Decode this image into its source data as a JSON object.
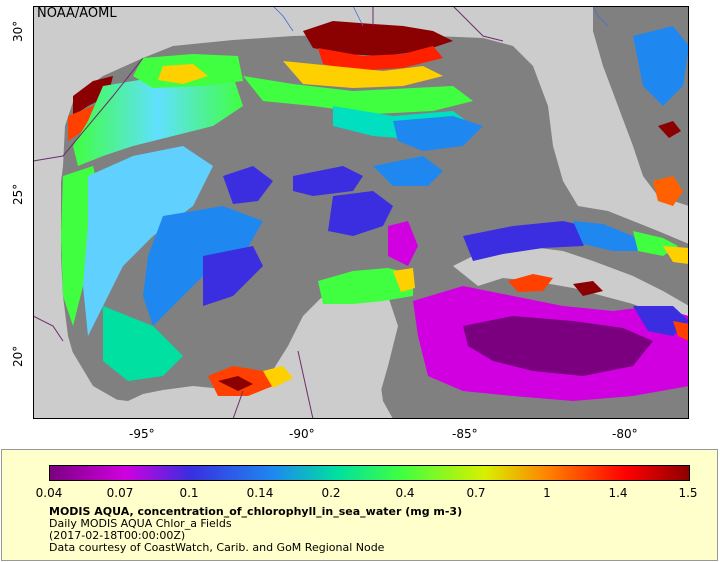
{
  "map": {
    "credit": "NOAA/AOML",
    "x_ticks": [
      "-95°",
      "-90°",
      "-85°",
      "-80°"
    ],
    "y_ticks": [
      "30°",
      "25°",
      "20°"
    ],
    "colors": {
      "land": "#cccccc",
      "ocean_nodata": "#808080",
      "border": "#6b2e6b"
    }
  },
  "legend": {
    "colorbar_labels": [
      "0.04",
      "0.07",
      "0.1",
      "0.14",
      "0.2",
      "0.4",
      "0.7",
      "1",
      "1.4",
      "1.5"
    ],
    "variable_title": "MODIS AQUA, concentration_of_chlorophyll_in_sea_water (mg m-3)",
    "line1": "Daily MODIS AQUA Chlor_a Fields",
    "line2": "(2017-02-18T00:00:00Z)",
    "line3": "Data courtesy of CoastWatch, Carib. and GoM Regional Node",
    "palette": [
      "#7a0080",
      "#d000e0",
      "#3a2ee0",
      "#1e88f0",
      "#00e0a0",
      "#40ff40",
      "#d8f000",
      "#ff8000",
      "#ff0000",
      "#8b0000"
    ],
    "background": "#ffffcc"
  }
}
